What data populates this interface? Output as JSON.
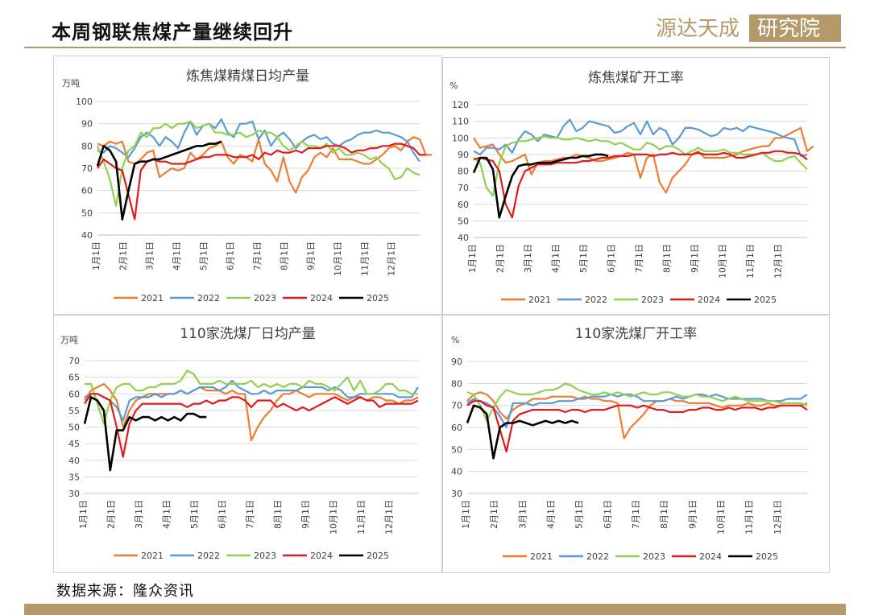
{
  "page": {
    "title": "本周钢联焦煤产量继续回升",
    "source": "数据来源：隆众资讯",
    "logo_text": "源达天成研究院"
  },
  "colors": {
    "2021": "#ed7d31",
    "2022": "#5b9bd5",
    "2023": "#92d050",
    "2024": "#e31a1c",
    "2025": "#000000",
    "accent": "#b49a6a"
  },
  "chart_data": [
    {
      "type": "line",
      "title": "炼焦煤精煤日均产量",
      "unit": "万吨",
      "ylim": [
        40,
        100
      ],
      "yticks": [
        40,
        50,
        60,
        70,
        80,
        90,
        100
      ],
      "xticks": [
        "1月1日",
        "2月1日",
        "3月1日",
        "4月1日",
        "5月1日",
        "6月1日",
        "7月1日",
        "8月1日",
        "9月1日",
        "10月1日",
        "11月1日",
        "12月1日"
      ],
      "series": [
        {
          "name": "2021",
          "values": [
            81,
            80,
            82,
            81,
            82,
            73,
            72,
            74,
            77,
            78,
            66,
            68,
            70,
            69,
            70,
            77,
            74,
            76,
            79,
            80,
            82,
            75,
            72,
            76,
            75,
            73,
            83,
            72,
            69,
            64,
            75,
            64,
            59,
            66,
            69,
            75,
            77,
            75,
            79,
            74,
            74,
            74,
            73,
            72,
            72,
            74,
            76,
            79,
            80,
            78,
            82,
            84,
            83,
            76,
            76
          ]
        },
        {
          "name": "2022",
          "values": [
            78,
            77,
            80,
            79,
            77,
            75,
            79,
            84,
            86,
            84,
            80,
            84,
            82,
            79,
            86,
            91,
            85,
            89,
            90,
            88,
            92,
            86,
            84,
            90,
            90,
            91,
            83,
            87,
            80,
            84,
            86,
            83,
            79,
            82,
            84,
            85,
            83,
            84,
            81,
            80,
            82,
            83,
            85,
            86,
            86,
            87,
            86,
            86,
            85,
            84,
            82,
            77,
            73
          ]
        },
        {
          "name": "2023",
          "values": [
            80,
            73,
            65,
            53,
            70,
            78,
            80,
            86,
            84,
            88,
            88,
            90,
            88,
            90,
            90,
            91,
            88,
            89,
            90,
            86,
            86,
            85,
            85,
            86,
            84,
            85,
            87,
            86,
            86,
            84,
            80,
            78,
            80,
            82,
            80,
            80,
            79,
            81,
            77,
            79,
            76,
            76,
            77,
            76,
            74,
            75,
            72,
            70,
            65,
            66,
            70,
            68,
            67
          ]
        },
        {
          "name": "2024",
          "values": [
            70,
            74,
            72,
            70,
            69,
            58,
            47,
            69,
            73,
            74,
            73,
            73,
            72,
            72,
            72,
            73,
            74,
            75,
            75,
            76,
            76,
            76,
            75,
            75,
            75,
            76,
            74,
            77,
            76,
            78,
            77,
            77,
            78,
            77,
            79,
            79,
            79,
            80,
            80,
            80,
            79,
            77,
            78,
            78,
            79,
            79,
            80,
            80,
            81,
            81,
            80,
            79,
            76,
            76
          ]
        },
        {
          "name": "2025",
          "values": [
            71,
            80,
            78,
            73,
            47,
            60,
            72,
            73,
            73,
            74,
            74,
            75,
            76,
            77,
            78,
            79,
            80,
            80,
            81,
            81,
            82
          ]
        }
      ]
    },
    {
      "type": "line",
      "title": "炼焦煤矿开工率",
      "unit": "%",
      "ylim": [
        40,
        120
      ],
      "yticks": [
        40,
        50,
        60,
        70,
        80,
        90,
        100,
        110,
        120
      ],
      "xticks": [
        "1月1日",
        "2月1日",
        "3月1日",
        "4月1日",
        "5月1日",
        "6月1日",
        "7月1日",
        "8月1日",
        "9月1日",
        "10月1日",
        "11月1日",
        "12月1日"
      ],
      "series": [
        {
          "name": "2021",
          "values": [
            100,
            94,
            95,
            96,
            90,
            85,
            86,
            88,
            90,
            78,
            85,
            86,
            86,
            87,
            88,
            88,
            90,
            89,
            88,
            86,
            86,
            87,
            88,
            89,
            91,
            90,
            76,
            88,
            90,
            73,
            67,
            76,
            80,
            84,
            90,
            92,
            88,
            88,
            88,
            88,
            89,
            90,
            92,
            93,
            94,
            95,
            95,
            100,
            100,
            102,
            104,
            106,
            92,
            95
          ]
        },
        {
          "name": "2022",
          "values": [
            92,
            90,
            94,
            94,
            93,
            96,
            91,
            99,
            104,
            102,
            98,
            102,
            101,
            100,
            107,
            111,
            104,
            106,
            110,
            109,
            108,
            107,
            103,
            104,
            107,
            109,
            102,
            110,
            102,
            106,
            104,
            96,
            100,
            106,
            106,
            105,
            103,
            101,
            102,
            106,
            105,
            106,
            104,
            107,
            106,
            105,
            104,
            103,
            101,
            100,
            99,
            89,
            90
          ]
        },
        {
          "name": "2023",
          "values": [
            88,
            85,
            70,
            65,
            85,
            95,
            97,
            98,
            98,
            99,
            100,
            101,
            100,
            100,
            99,
            99,
            100,
            99,
            98,
            99,
            98,
            98,
            96,
            97,
            95,
            93,
            93,
            97,
            96,
            93,
            95,
            95,
            93,
            90,
            92,
            94,
            92,
            92,
            92,
            93,
            91,
            91,
            90,
            90,
            90,
            91,
            88,
            86,
            86,
            88,
            89,
            85,
            81
          ]
        },
        {
          "name": "2024",
          "values": [
            87,
            88,
            87,
            86,
            80,
            60,
            52,
            71,
            80,
            82,
            84,
            84,
            84,
            85,
            85,
            85,
            85,
            86,
            86,
            87,
            88,
            88,
            89,
            89,
            89,
            90,
            90,
            90,
            89,
            90,
            90,
            91,
            90,
            90,
            90,
            91,
            90,
            90,
            90,
            91,
            90,
            88,
            88,
            89,
            90,
            91,
            91,
            92,
            92,
            91,
            91,
            90,
            87
          ]
        },
        {
          "name": "2025",
          "values": [
            79,
            88,
            88,
            81,
            52,
            65,
            77,
            83,
            84,
            84,
            85,
            85,
            85,
            86,
            87,
            88,
            88,
            89,
            89,
            90,
            90,
            89
          ]
        }
      ]
    },
    {
      "type": "line",
      "title": "110家洗煤厂日均产量",
      "unit": "万吨",
      "ylim": [
        30,
        70
      ],
      "yticks": [
        30,
        35,
        40,
        45,
        50,
        55,
        60,
        65,
        70
      ],
      "xticks": [
        "1月1日",
        "2月1日",
        "3月1日",
        "4月1日",
        "5月1日",
        "6月1日",
        "7月1日",
        "8月1日",
        "9月1日",
        "10月1日",
        "11月1日",
        "12月1日"
      ],
      "series": [
        {
          "name": "2021",
          "values": [
            58,
            61,
            62,
            63,
            61,
            58,
            50,
            55,
            58,
            59,
            60,
            60,
            60,
            60,
            60,
            61,
            60,
            61,
            62,
            61,
            61,
            61,
            60,
            61,
            60,
            60,
            46,
            50,
            53,
            55,
            58,
            60,
            60,
            61,
            60,
            59,
            60,
            60,
            60,
            60,
            59,
            58,
            59,
            59,
            58,
            59,
            59,
            58,
            58,
            57,
            58,
            58,
            59
          ]
        },
        {
          "name": "2022",
          "values": [
            59,
            60,
            60,
            59,
            58,
            56,
            52,
            58,
            59,
            59,
            59,
            60,
            59,
            60,
            60,
            61,
            60,
            61,
            62,
            62,
            62,
            61,
            62,
            64,
            62,
            61,
            60,
            60,
            61,
            60,
            61,
            61,
            61,
            61,
            62,
            62,
            62,
            62,
            61,
            62,
            61,
            59,
            59,
            60,
            60,
            60,
            60,
            60,
            60,
            59,
            59,
            59,
            62
          ]
        },
        {
          "name": "2023",
          "values": [
            63,
            63,
            57,
            51,
            58,
            62,
            63,
            63,
            61,
            61,
            62,
            62,
            63,
            63,
            63,
            64,
            67,
            66,
            63,
            63,
            63,
            64,
            63,
            63,
            63,
            63,
            64,
            62,
            63,
            62,
            63,
            62,
            63,
            63,
            62,
            64,
            63,
            63,
            62,
            61,
            63,
            65,
            61,
            64,
            60,
            60,
            61,
            63,
            63,
            61,
            61,
            60,
            60
          ]
        },
        {
          "name": "2024",
          "values": [
            57,
            60,
            60,
            59,
            58,
            50,
            41,
            51,
            55,
            57,
            57,
            57,
            57,
            57,
            57,
            57,
            56,
            57,
            57,
            58,
            57,
            58,
            58,
            59,
            59,
            58,
            56,
            58,
            58,
            58,
            56,
            57,
            56,
            55,
            56,
            55,
            56,
            57,
            58,
            59,
            58,
            57,
            58,
            59,
            58,
            58,
            56,
            57,
            57,
            57,
            57,
            57,
            58
          ]
        },
        {
          "name": "2025",
          "values": [
            51,
            59,
            58,
            55,
            37,
            49,
            49,
            53,
            52,
            53,
            53,
            52,
            53,
            52,
            53,
            52,
            54,
            54,
            53,
            53
          ]
        }
      ]
    },
    {
      "type": "line",
      "title": "110家洗煤厂开工率",
      "unit": "%",
      "ylim": [
        30,
        90
      ],
      "yticks": [
        30,
        40,
        50,
        60,
        70,
        80,
        90
      ],
      "xticks": [
        "1月1日",
        "2月1日",
        "3月1日",
        "4月1日",
        "5月1日",
        "6月1日",
        "7月1日",
        "8月1日",
        "9月1日",
        "10月1日",
        "11月1日",
        "12月1日"
      ],
      "series": [
        {
          "name": "2021",
          "values": [
            72,
            75,
            76,
            75,
            72,
            67,
            64,
            68,
            70,
            71,
            73,
            73,
            73,
            74,
            74,
            74,
            74,
            73,
            74,
            73,
            73,
            72,
            72,
            71,
            55,
            60,
            63,
            66,
            70,
            72,
            72,
            73,
            72,
            72,
            71,
            71,
            71,
            71,
            70,
            69,
            70,
            70,
            70,
            71,
            70,
            70,
            71,
            70,
            70,
            70,
            70,
            70,
            71
          ]
        },
        {
          "name": "2022",
          "values": [
            71,
            73,
            72,
            71,
            69,
            65,
            60,
            71,
            71,
            71,
            70,
            71,
            71,
            71,
            72,
            72,
            72,
            73,
            73,
            74,
            74,
            74,
            75,
            74,
            75,
            75,
            74,
            72,
            72,
            72,
            72,
            73,
            74,
            73,
            74,
            75,
            75,
            74,
            75,
            74,
            73,
            73,
            73,
            73,
            73,
            73,
            72,
            72,
            72,
            73,
            73,
            73,
            75
          ]
        },
        {
          "name": "2023",
          "values": [
            76,
            75,
            70,
            63,
            69,
            74,
            77,
            76,
            75,
            75,
            75,
            76,
            77,
            77,
            78,
            80,
            79,
            77,
            76,
            75,
            75,
            76,
            75,
            76,
            75,
            74,
            75,
            76,
            75,
            75,
            76,
            76,
            75,
            74,
            74,
            75,
            74,
            74,
            73,
            72,
            73,
            74,
            73,
            72,
            72,
            72,
            72,
            72,
            71,
            71,
            71,
            71,
            70
          ]
        },
        {
          "name": "2024",
          "values": [
            70,
            72,
            72,
            70,
            69,
            59,
            49,
            63,
            66,
            67,
            68,
            68,
            68,
            68,
            68,
            67,
            68,
            68,
            67,
            68,
            68,
            68,
            69,
            70,
            70,
            70,
            69,
            70,
            69,
            68,
            68,
            67,
            67,
            67,
            68,
            68,
            69,
            69,
            68,
            68,
            69,
            68,
            69,
            69,
            69,
            68,
            69,
            69,
            70,
            70,
            70,
            70,
            68
          ]
        },
        {
          "name": "2025",
          "values": [
            62,
            70,
            69,
            66,
            46,
            60,
            62,
            62,
            63,
            62,
            61,
            62,
            63,
            62,
            63,
            62,
            63,
            62
          ]
        }
      ]
    }
  ]
}
